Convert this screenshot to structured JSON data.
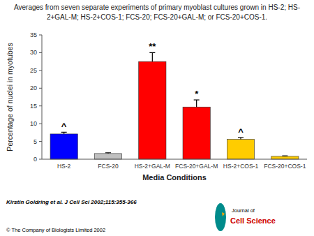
{
  "chart_data": {
    "type": "bar",
    "title": "Averages from seven separate experiments of primary myoblast cultures grown in HS-2; HS-",
    "subtitle": "2+GAL-M; HS-2+COS-1; FCS-20; FCS-20+GAL-M; or FCS-20+COS-1.",
    "xlabel": "Media Conditions",
    "ylabel": "Percentage of nuclei in myotubes",
    "categories": [
      "HS-2",
      "FCS-20",
      "HS-2+GAL-M",
      "FCS-20+GAL-M",
      "HS-2+COS-1",
      "FCS-20+COS-1"
    ],
    "values": [
      7.1,
      1.6,
      27.5,
      14.7,
      5.6,
      0.8
    ],
    "errors": [
      0.5,
      0.2,
      2.5,
      2.0,
      0.5,
      0.15
    ],
    "colors": [
      "#0000ff",
      "#c0c0c0",
      "#ff0000",
      "#ff0000",
      "#ffcc00",
      "#ffcc00"
    ],
    "ylim": [
      0,
      35
    ],
    "yticks": [
      0,
      5,
      10,
      15,
      20,
      25,
      30,
      35
    ],
    "grid": false,
    "annotations": [
      {
        "text": "^",
        "category": "HS-2"
      },
      {
        "text": "**",
        "category": "HS-2+GAL-M"
      },
      {
        "text": "*",
        "category": "FCS-20+GAL-M"
      },
      {
        "text": "^",
        "category": "HS-2+COS-1"
      },
      {
        "text": "Kirstin Goldring et al. J Cell Sci 2002;115:355-366"
      },
      {
        "text": "© The Company of Biologists Limited 2002"
      },
      {
        "text": "Journal of"
      },
      {
        "text": "Cell Science"
      }
    ]
  }
}
